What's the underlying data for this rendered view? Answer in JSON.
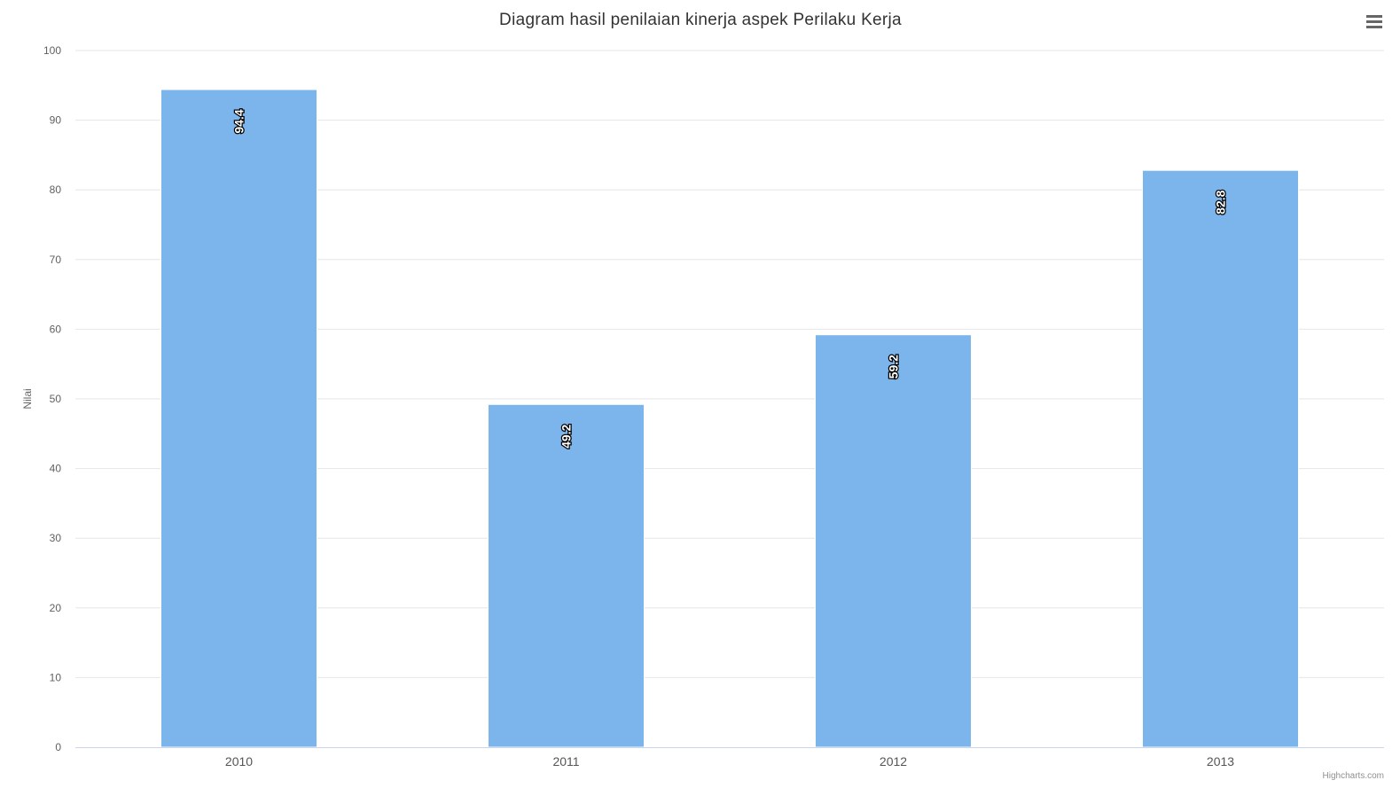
{
  "chart_data": {
    "type": "bar",
    "title": "Diagram hasil penilaian kinerja aspek Perilaku Kerja",
    "categories": [
      "2010",
      "2011",
      "2012",
      "2013"
    ],
    "values": [
      94.4,
      49.2,
      59.2,
      82.8
    ],
    "data_labels": [
      "94.4",
      "49.2",
      "59.2",
      "82.8"
    ],
    "xlabel": "",
    "ylabel": "Nilai",
    "ylim": [
      0,
      100
    ],
    "yticks": [
      "0",
      "10",
      "20",
      "30",
      "40",
      "50",
      "60",
      "70",
      "80",
      "90",
      "100"
    ],
    "grid": true,
    "legend": "none",
    "bar_color": "#7cb5ec",
    "gridline_color": "#e6e6e6",
    "axis_line_color": "#ccd6eb"
  },
  "menu": {
    "icon": "hamburger-menu-icon"
  },
  "credits": "Highcharts.com"
}
